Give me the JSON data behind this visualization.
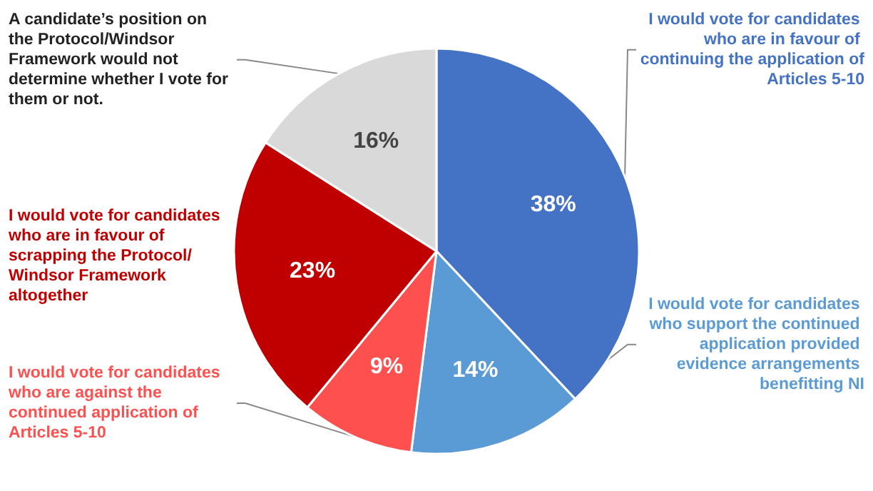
{
  "chart_data": {
    "type": "pie",
    "categories": [
      "I would vote for candidates who are in favour of continuing the application of Articles 5-10",
      "I would vote for candidates who support the continued application provided evidence arrangements benefitting NI",
      "I would vote for candidates who are against the continued application of Articles 5-10",
      "I would vote for candidates who are in favour of scrapping the Protocol/Windsor Framework altogether",
      "A candidate’s position on the Protocol/Windsor Framework would not determine whether I vote for them or not."
    ],
    "values": [
      38,
      14,
      9,
      23,
      16
    ],
    "colors": [
      "#4472c4",
      "#5b9bd5",
      "#ff5050",
      "#c00000",
      "#d9d9d9"
    ],
    "value_labels": [
      "38%",
      "14%",
      "9%",
      "23%",
      "16%"
    ]
  }
}
